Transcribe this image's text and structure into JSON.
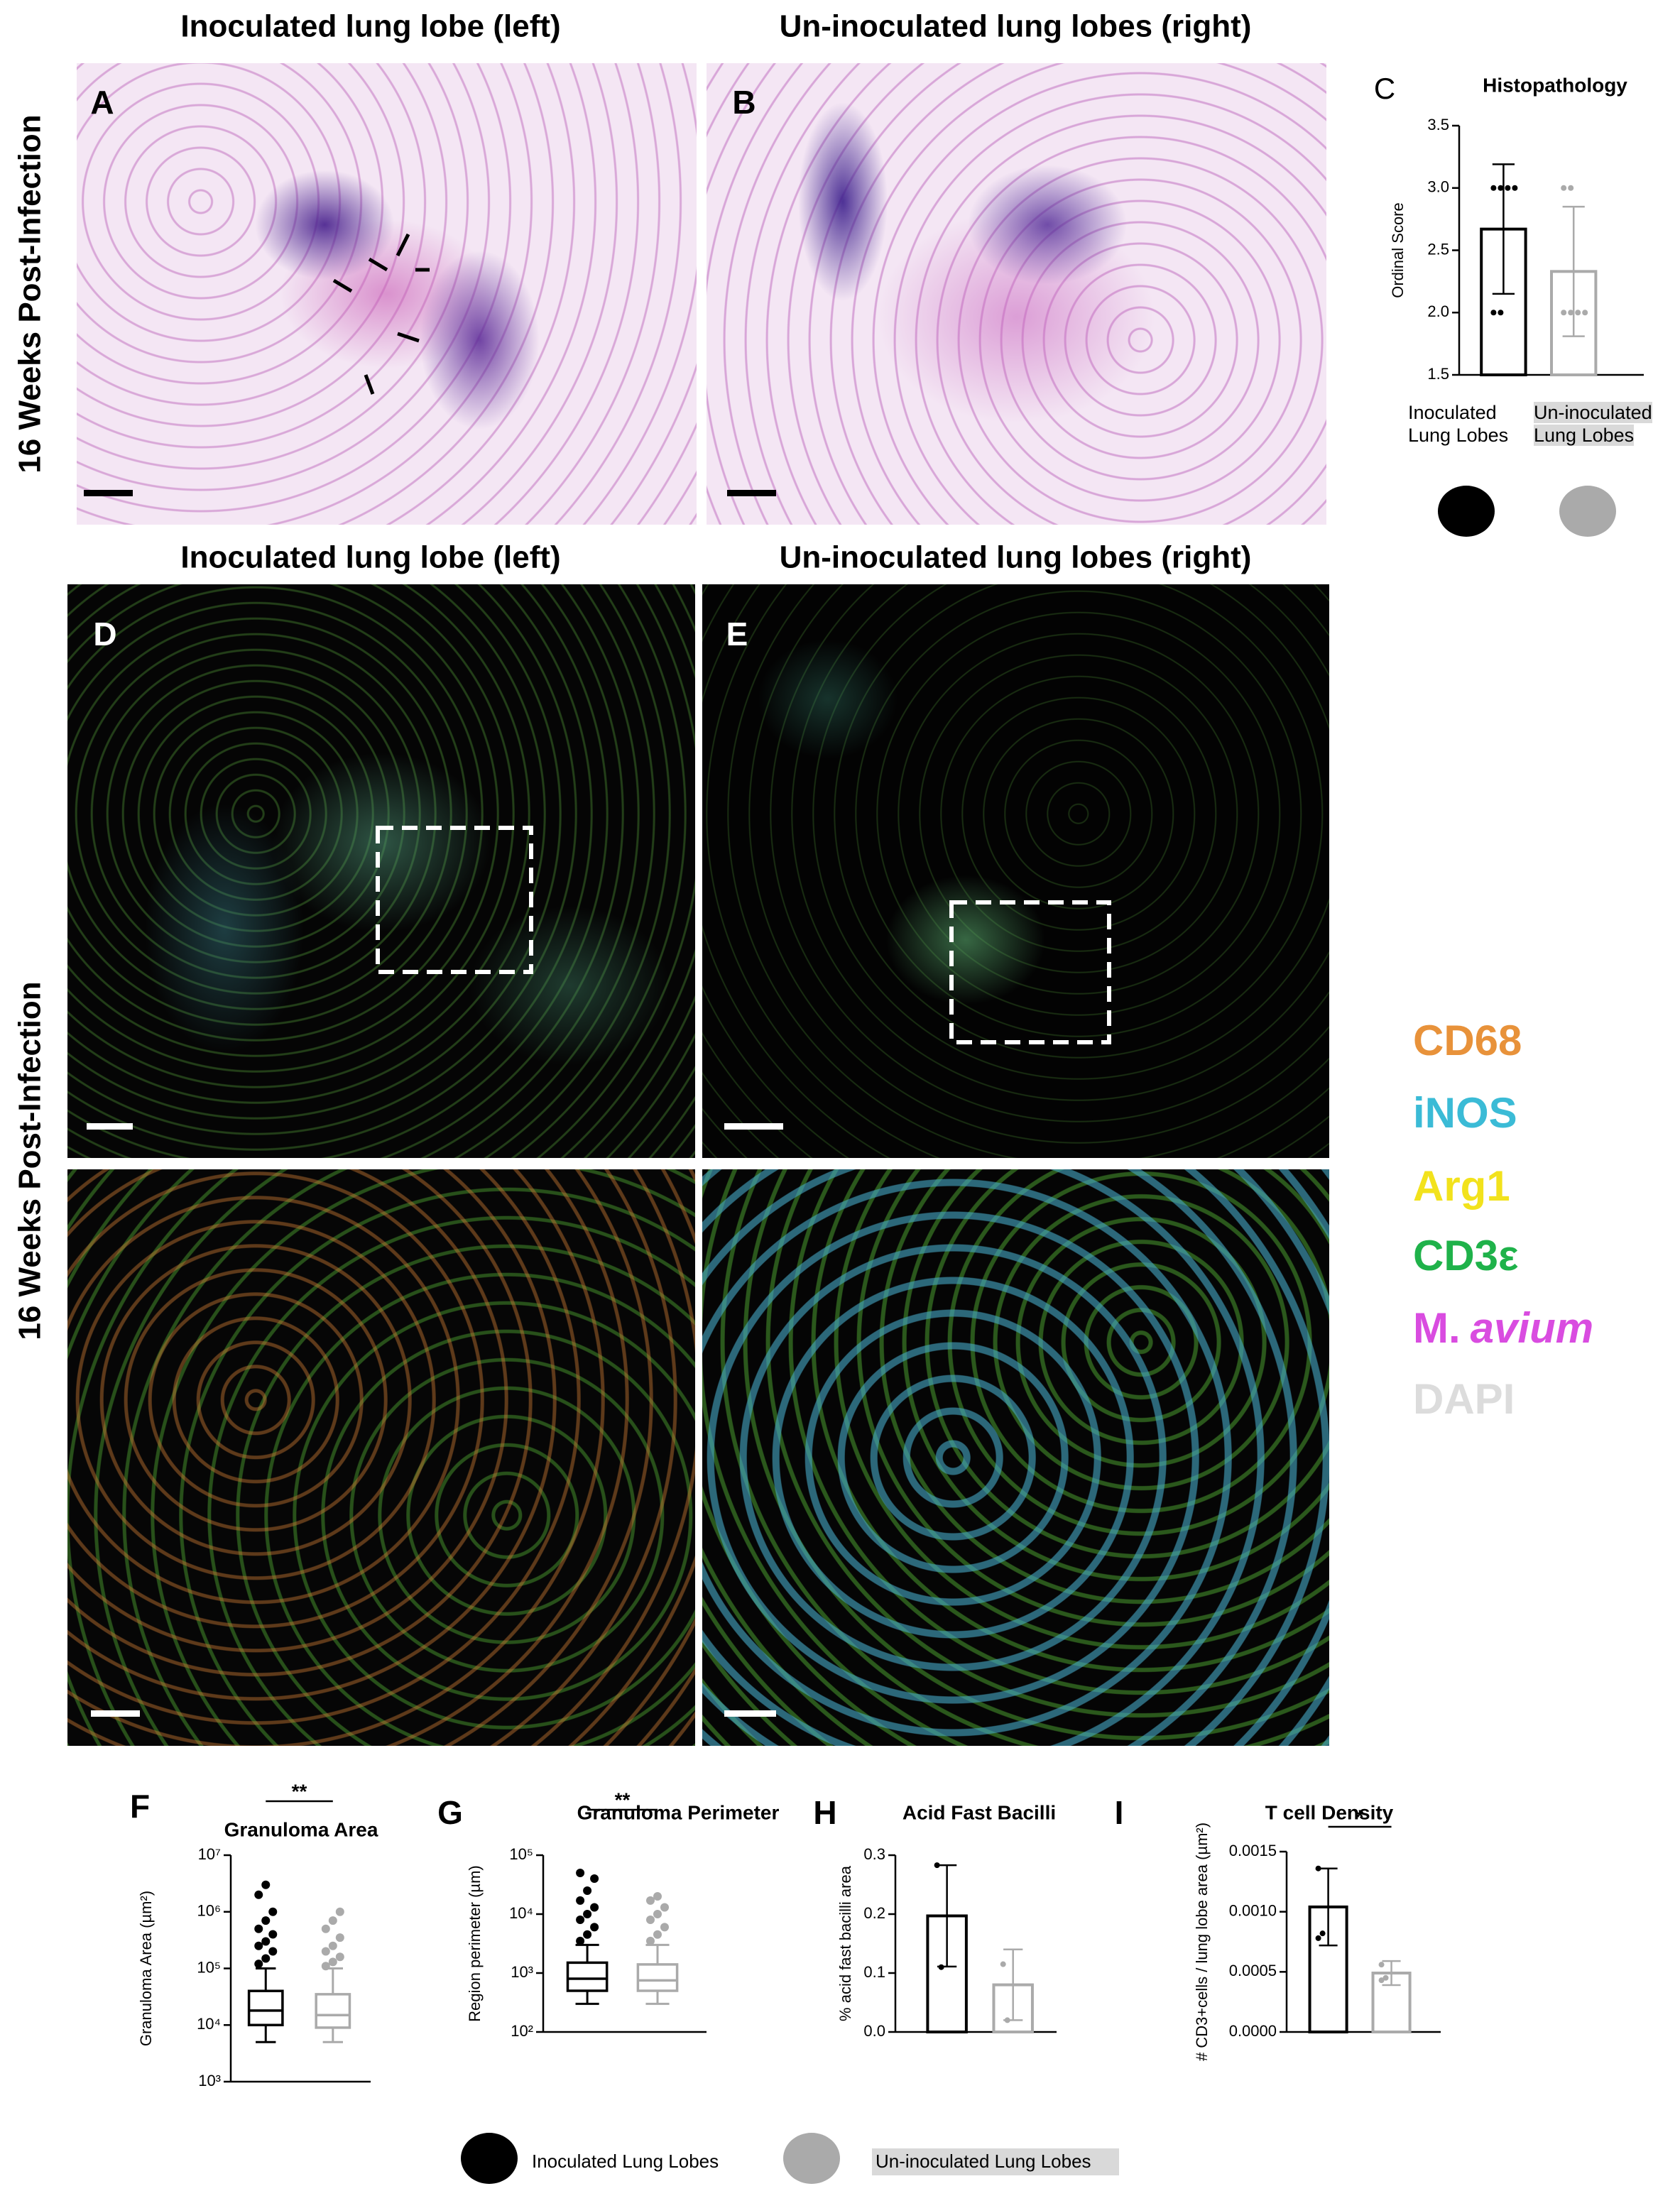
{
  "row_labels": [
    "16 Weeks Post-Infection",
    "16 Weeks Post-Infection"
  ],
  "panels": [
    {
      "letter": "A",
      "title": "Inoculated lung lobe (left)"
    },
    {
      "letter": "B",
      "title": "Un-inoculated lung lobes (right)"
    },
    {
      "letter": "D",
      "title": "Inoculated lung lobe (left)"
    },
    {
      "letter": "E",
      "title": "Un-inoculated lung lobes (right)"
    }
  ],
  "channels": [
    {
      "name": "CD68",
      "color": "#e8923a"
    },
    {
      "name": "iNOS",
      "color": "#3bbbd6"
    },
    {
      "name": "Arg1",
      "color": "#f2e21c"
    },
    {
      "name": "CD3ε",
      "color": "#1fb24a"
    },
    {
      "name": "M.",
      "name_italic": "avium",
      "color": "#d94ce0"
    },
    {
      "name": "DAPI",
      "color": "#dcdcdc"
    }
  ],
  "legend": [
    {
      "name": "Inoculated Lung Lobes",
      "color": "#000000"
    },
    {
      "name": "Un-inoculated Lung Lobes",
      "color": "#aaaaaa"
    }
  ],
  "chart_data": [
    {
      "type": "bar",
      "letter": "C",
      "title": "Histopathology",
      "ylabel": "Ordinal Score",
      "categories": [
        "Inoculated Lung Lobes",
        "Un-inoculated Lung Lobes"
      ],
      "values": [
        2.67,
        2.33
      ],
      "errors": [
        0.52,
        0.52
      ],
      "colors": [
        "#000000",
        "#aaaaaa"
      ],
      "points": [
        [
          3,
          3,
          3,
          3,
          2,
          2
        ],
        [
          3,
          3,
          2,
          2,
          2,
          2
        ]
      ],
      "ylim": [
        1.5,
        3.5
      ],
      "yticks": [
        1.5,
        {
          "value": 2,
          "label": "2.0"
        },
        2.5,
        {
          "value": 3,
          "label": "3.0"
        },
        3.5
      ]
    },
    {
      "type": "box",
      "letter": "F",
      "title": "Granuloma Area",
      "ylabel": "Granuloma Area (µm²)",
      "log_scale": true,
      "colors": [
        "#000000",
        "#aaaaaa"
      ],
      "significance": "**",
      "boxes": [
        {
          "min": 5000,
          "q1": 10000,
          "median": 18000,
          "q3": 40000,
          "max": 100000,
          "outliers": [
            120000,
            150000,
            200000,
            250000,
            300000,
            400000,
            500000,
            700000,
            1000000,
            2000000,
            3000000
          ]
        },
        {
          "min": 5000,
          "q1": 9000,
          "median": 15000,
          "q3": 35000,
          "max": 100000,
          "outliers": [
            110000,
            130000,
            160000,
            200000,
            250000,
            350000,
            500000,
            700000,
            1000000
          ]
        }
      ],
      "ylim": [
        1000,
        10000000
      ],
      "yticks": [
        {
          "value": 1000,
          "label": "10³"
        },
        {
          "value": 10000,
          "label": "10⁴"
        },
        {
          "value": 100000,
          "label": "10⁵"
        },
        {
          "value": 1000000,
          "label": "10⁶"
        },
        {
          "value": 10000000,
          "label": "10⁷"
        }
      ]
    },
    {
      "type": "box",
      "letter": "G",
      "title": "Granuloma Perimeter",
      "ylabel": "Region perimeter (µm)",
      "log_scale": true,
      "colors": [
        "#000000",
        "#aaaaaa"
      ],
      "significance": "**",
      "boxes": [
        {
          "min": 300,
          "q1": 500,
          "median": 800,
          "q3": 1500,
          "max": 3000,
          "outliers": [
            3500,
            4500,
            6000,
            8000,
            10000,
            13000,
            17000,
            25000,
            40000,
            50000
          ]
        },
        {
          "min": 300,
          "q1": 500,
          "median": 750,
          "q3": 1400,
          "max": 3000,
          "outliers": [
            3500,
            4500,
            6000,
            8000,
            10000,
            13000,
            17000,
            20000
          ]
        }
      ],
      "ylim": [
        100,
        100000
      ],
      "yticks": [
        {
          "value": 100,
          "label": "10²"
        },
        {
          "value": 1000,
          "label": "10³"
        },
        {
          "value": 10000,
          "label": "10⁴"
        },
        {
          "value": 100000,
          "label": "10⁵"
        }
      ]
    },
    {
      "type": "bar",
      "letter": "H",
      "title": "Acid Fast Bacilli",
      "ylabel": "% acid fast bacilli area",
      "values": [
        0.197,
        0.08
      ],
      "errors": [
        0.086,
        0.06
      ],
      "colors": [
        "#000000",
        "#aaaaaa"
      ],
      "points": [
        [
          0.283,
          0.11
        ],
        [
          0.115,
          0.02
        ]
      ],
      "ylim": [
        0,
        0.3
      ],
      "yticks": [
        {
          "value": 0,
          "label": "0.0"
        },
        0.1,
        0.2,
        0.3
      ]
    },
    {
      "type": "bar",
      "letter": "I",
      "title": "T cell Density",
      "ylabel": "# CD3+cells / lung lobe area (µm²)",
      "values": [
        0.00104,
        0.00049
      ],
      "errors": [
        0.00032,
        0.0001
      ],
      "colors": [
        "#000000",
        "#aaaaaa"
      ],
      "points": [
        [
          0.00136,
          0.00082,
          0.00078
        ],
        [
          0.00056,
          0.00045,
          0.00043
        ]
      ],
      "significance": "*",
      "ylim": [
        0,
        0.0015
      ],
      "yticks": [
        {
          "value": 0,
          "label": "0.0000"
        },
        0.0005,
        {
          "value": 0.001,
          "label": "0.0010"
        },
        0.0015
      ]
    }
  ]
}
